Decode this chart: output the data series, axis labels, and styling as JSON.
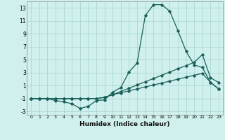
{
  "xlabel": "Humidex (Indice chaleur)",
  "bg_color": "#cff0ec",
  "line_color": "#1a5f5a",
  "grid_color": "#aad8d3",
  "xlim": [
    -0.5,
    23.5
  ],
  "ylim": [
    -3.5,
    14.0
  ],
  "xticks": [
    0,
    1,
    2,
    3,
    4,
    5,
    6,
    7,
    8,
    9,
    10,
    11,
    12,
    13,
    14,
    15,
    16,
    17,
    18,
    19,
    20,
    21,
    22,
    23
  ],
  "yticks": [
    -3,
    -1,
    1,
    3,
    5,
    7,
    9,
    11,
    13
  ],
  "line1_x": [
    0,
    1,
    2,
    3,
    4,
    5,
    6,
    7,
    8,
    9,
    10,
    11,
    12,
    13,
    14,
    15,
    16,
    17,
    18,
    19,
    20,
    21,
    22,
    23
  ],
  "line1_y": [
    -1,
    -1,
    -1,
    -1.3,
    -1.5,
    -1.8,
    -2.5,
    -2.2,
    -1.3,
    -1.2,
    0.0,
    0.7,
    3.1,
    4.5,
    11.8,
    13.5,
    13.5,
    12.5,
    9.5,
    6.3,
    4.2,
    3.8,
    1.5,
    0.5
  ],
  "line2_x": [
    0,
    1,
    2,
    3,
    4,
    5,
    6,
    7,
    8,
    9,
    10,
    11,
    12,
    13,
    14,
    15,
    16,
    17,
    18,
    19,
    20,
    21,
    22,
    23
  ],
  "line2_y": [
    -1,
    -1,
    -1,
    -1,
    -1,
    -1,
    -1,
    -1,
    -1,
    -0.8,
    -0.4,
    0.1,
    0.6,
    1.1,
    1.6,
    2.1,
    2.6,
    3.1,
    3.6,
    4.1,
    4.6,
    5.8,
    2.2,
    1.5
  ],
  "line3_x": [
    0,
    1,
    2,
    3,
    4,
    5,
    6,
    7,
    8,
    9,
    10,
    11,
    12,
    13,
    14,
    15,
    16,
    17,
    18,
    19,
    20,
    21,
    22,
    23
  ],
  "line3_y": [
    -1,
    -1,
    -1,
    -1,
    -1,
    -1,
    -1,
    -1,
    -1,
    -0.8,
    -0.4,
    -0.1,
    0.2,
    0.5,
    0.8,
    1.1,
    1.4,
    1.7,
    2.0,
    2.3,
    2.6,
    2.9,
    1.5,
    0.5
  ]
}
